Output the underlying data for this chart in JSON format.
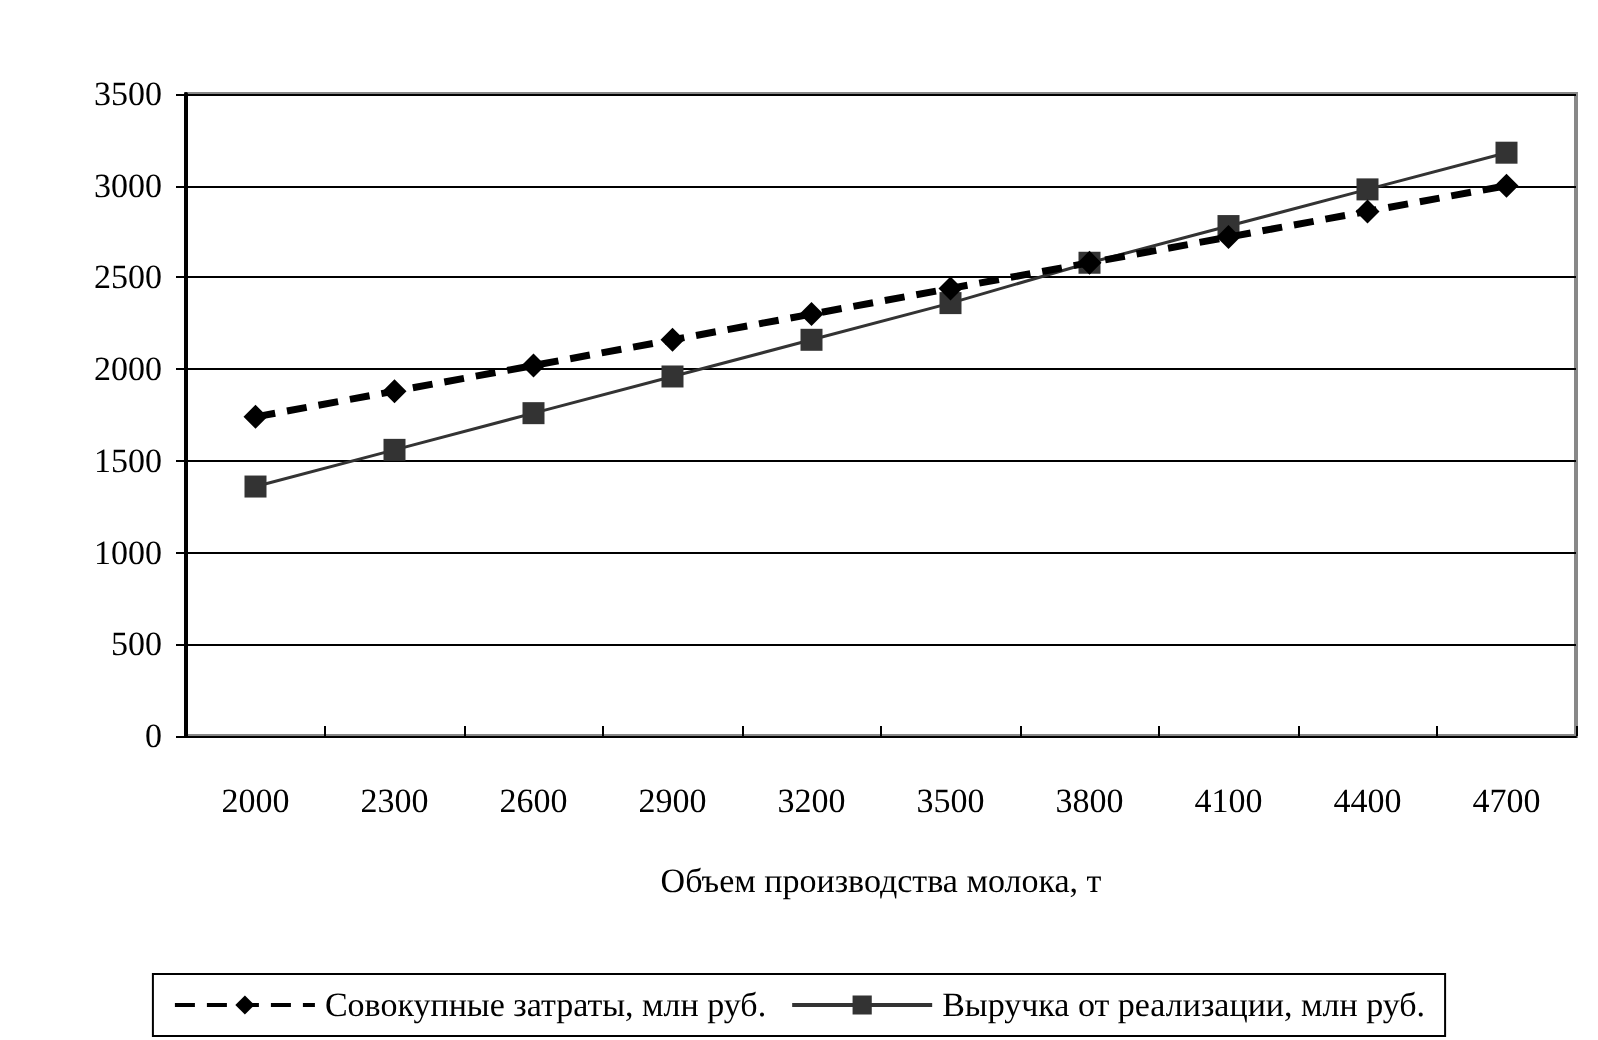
{
  "chart_data": {
    "type": "line",
    "xlabel": "Объем производства молока, т",
    "categories": [
      "2000",
      "2300",
      "2600",
      "2900",
      "3200",
      "3500",
      "3800",
      "4100",
      "4400",
      "4700"
    ],
    "series": [
      {
        "name": "Совокупные затраты, млн руб.",
        "color": "#000000",
        "marker": "diamond",
        "line_style": "dashed",
        "values": [
          1740,
          1880,
          2020,
          2160,
          2300,
          2440,
          2580,
          2720,
          2860,
          3000
        ]
      },
      {
        "name": "Выручка от реализации, млн руб.",
        "color": "#333333",
        "marker": "square",
        "line_style": "solid",
        "values": [
          1360,
          1560,
          1760,
          1960,
          2160,
          2360,
          2580,
          2780,
          2980,
          3180
        ]
      }
    ],
    "ylim": [
      0,
      3500
    ],
    "yticks": [
      0,
      500,
      1000,
      1500,
      2000,
      2500,
      3000,
      3500
    ],
    "grid": "y",
    "legend": "bottom"
  }
}
